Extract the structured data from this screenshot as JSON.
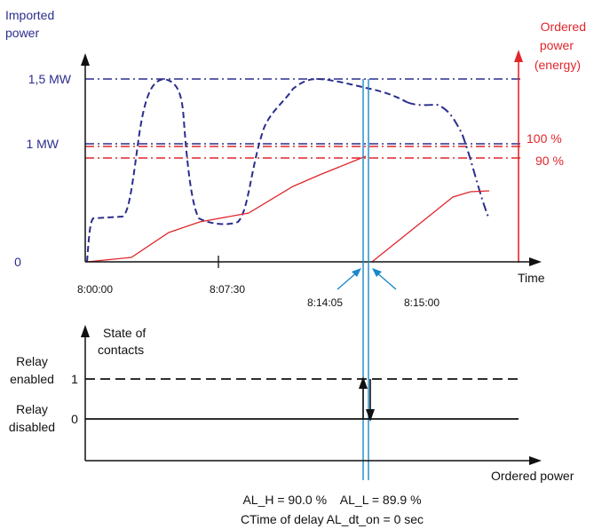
{
  "colors": {
    "imported": "#2b2d8e",
    "ordered": "#e0262b",
    "marker": "#1a88c9",
    "axis": "#111111"
  },
  "top_chart": {
    "y_axis_title_line1": "Imported",
    "y_axis_title_line2": "power",
    "right_axis_title_line1": "Ordered",
    "right_axis_title_line2": "power",
    "right_axis_title_line3": "(energy)",
    "y_ticks": {
      "max": "1,5 MW",
      "mid": "1 MW",
      "zero": "0"
    },
    "right_labels": {
      "hundred": "100 %",
      "ninety": "90 %"
    },
    "x_ticks": {
      "t0": "8:00:00",
      "t1": "8:07:30",
      "t2": "8:14:05",
      "t3": "8:15:00"
    },
    "x_axis_label": "Time"
  },
  "bottom_chart": {
    "y_axis_title_line1": "State of",
    "y_axis_title_line2": "contacts",
    "enabled_line1": "Relay",
    "enabled_line2": "enabled",
    "disabled_line1": "Relay",
    "disabled_line2": "disabled",
    "tick_one": "1",
    "tick_zero": "0",
    "x_axis_label": "Ordered power"
  },
  "footer": {
    "thresholds": "AL_H = 90.0 %    AL_L = 89.9 %",
    "delay": "CTime of delay AL_dt_on = 0 sec"
  }
}
